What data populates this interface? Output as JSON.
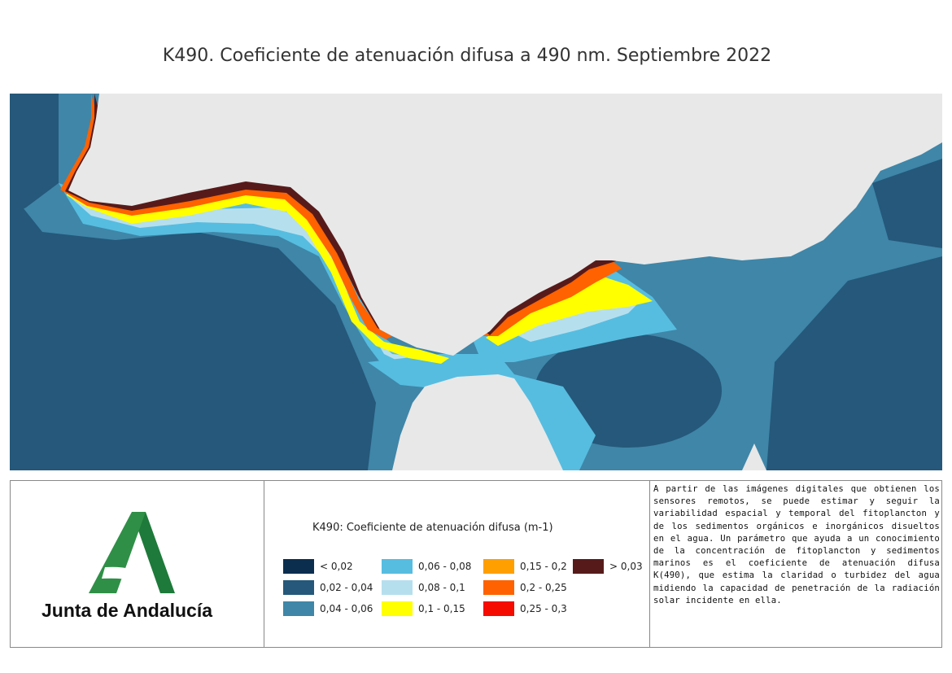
{
  "title": "K490. Coeficiente de atenuación difusa a 490 nm. Septiembre 2022",
  "logo": {
    "text": "Junta de Andalucía",
    "icon": "junta-andalucia-logo"
  },
  "legend": {
    "title": "K490: Coeficiente de atenuación difusa (m-1)",
    "items": [
      {
        "label": "< 0,02",
        "color": "#0b2e4f"
      },
      {
        "label": "0,02 - 0,04",
        "color": "#25587a"
      },
      {
        "label": "0,04 - 0,06",
        "color": "#3f86a8"
      },
      {
        "label": "0,06 - 0,08",
        "color": "#56bde0"
      },
      {
        "label": "0,08 - 0,1",
        "color": "#b6dfee"
      },
      {
        "label": "0,1 - 0,15",
        "color": "#ffff00"
      },
      {
        "label": "0,15 - 0,2",
        "color": "#ff9f00"
      },
      {
        "label": "0,2 - 0,25",
        "color": "#ff6200"
      },
      {
        "label": "0,25 - 0,3",
        "color": "#f50b00"
      },
      {
        "label": "> 0,03",
        "color": "#571a1a"
      }
    ]
  },
  "description": "A partir de las imágenes digitales que obtienen los sensores remotos, se puede estimar y seguir la variabilidad espacial y temporal del fitoplancton y de los sedimentos orgánicos e inorgánicos disueltos en el agua. Un parámetro que ayuda a un conocimiento de la concentración de fitoplancton y sedimentos marinos es el coeficiente de atenuación difusa K(490), que estima la claridad o turbidez del agua midiendo la capacidad de penetración de la radiación solar incidente en ella.",
  "map": {
    "land_color": "#e8e8e8"
  }
}
